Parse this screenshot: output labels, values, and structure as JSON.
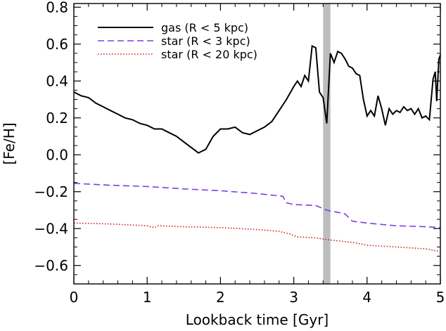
{
  "chart_data": {
    "type": "line",
    "xlabel": "Lookback time [Gyr]",
    "ylabel": "[Fe/H]",
    "xlim": [
      0,
      5
    ],
    "ylim": [
      -0.7,
      0.82
    ],
    "xticks": [
      0,
      1,
      2,
      3,
      4,
      5
    ],
    "xtick_labels": [
      "0",
      "1",
      "2",
      "3",
      "4",
      "5"
    ],
    "yticks": [
      -0.6,
      -0.4,
      -0.2,
      0.0,
      0.2,
      0.4,
      0.6,
      0.8
    ],
    "ytick_labels": [
      "−0.6",
      "−0.4",
      "−0.2",
      "0.0",
      "0.2",
      "0.4",
      "0.6",
      "0.8"
    ],
    "grid": false,
    "legend_position": "top-left",
    "highlight_band": {
      "x0": 3.4,
      "x1": 3.5,
      "color": "#bdbdbd"
    },
    "series": [
      {
        "name": "gas (R < 5 kpc)",
        "color": "#000000",
        "style": "solid",
        "points": [
          [
            0,
            0.34
          ],
          [
            0.1,
            0.32
          ],
          [
            0.2,
            0.31
          ],
          [
            0.3,
            0.28
          ],
          [
            0.4,
            0.26
          ],
          [
            0.5,
            0.24
          ],
          [
            0.6,
            0.22
          ],
          [
            0.7,
            0.2
          ],
          [
            0.8,
            0.19
          ],
          [
            0.9,
            0.17
          ],
          [
            1.0,
            0.16
          ],
          [
            1.1,
            0.14
          ],
          [
            1.2,
            0.14
          ],
          [
            1.3,
            0.12
          ],
          [
            1.4,
            0.1
          ],
          [
            1.5,
            0.07
          ],
          [
            1.6,
            0.04
          ],
          [
            1.7,
            0.01
          ],
          [
            1.8,
            0.03
          ],
          [
            1.9,
            0.1
          ],
          [
            2.0,
            0.14
          ],
          [
            2.1,
            0.14
          ],
          [
            2.2,
            0.15
          ],
          [
            2.3,
            0.12
          ],
          [
            2.4,
            0.11
          ],
          [
            2.5,
            0.13
          ],
          [
            2.6,
            0.15
          ],
          [
            2.7,
            0.18
          ],
          [
            2.8,
            0.24
          ],
          [
            2.9,
            0.3
          ],
          [
            3.0,
            0.37
          ],
          [
            3.05,
            0.4
          ],
          [
            3.1,
            0.37
          ],
          [
            3.15,
            0.43
          ],
          [
            3.2,
            0.4
          ],
          [
            3.25,
            0.59
          ],
          [
            3.3,
            0.58
          ],
          [
            3.35,
            0.34
          ],
          [
            3.4,
            0.31
          ],
          [
            3.45,
            0.17
          ],
          [
            3.5,
            0.55
          ],
          [
            3.55,
            0.5
          ],
          [
            3.6,
            0.56
          ],
          [
            3.65,
            0.55
          ],
          [
            3.7,
            0.52
          ],
          [
            3.75,
            0.48
          ],
          [
            3.8,
            0.47
          ],
          [
            3.85,
            0.44
          ],
          [
            3.9,
            0.43
          ],
          [
            3.95,
            0.3
          ],
          [
            4.0,
            0.21
          ],
          [
            4.05,
            0.24
          ],
          [
            4.1,
            0.21
          ],
          [
            4.15,
            0.32
          ],
          [
            4.2,
            0.25
          ],
          [
            4.25,
            0.16
          ],
          [
            4.3,
            0.25
          ],
          [
            4.35,
            0.22
          ],
          [
            4.4,
            0.24
          ],
          [
            4.45,
            0.23
          ],
          [
            4.5,
            0.26
          ],
          [
            4.55,
            0.24
          ],
          [
            4.6,
            0.25
          ],
          [
            4.65,
            0.22
          ],
          [
            4.7,
            0.25
          ],
          [
            4.75,
            0.2
          ],
          [
            4.8,
            0.21
          ],
          [
            4.85,
            0.19
          ],
          [
            4.9,
            0.41
          ],
          [
            4.93,
            0.45
          ],
          [
            4.95,
            0.29
          ],
          [
            4.98,
            0.52
          ],
          [
            5.0,
            0.54
          ]
        ]
      },
      {
        "name": "star (R < 3 kpc)",
        "color": "#7b3fe6",
        "style": "dashed",
        "points": [
          [
            0,
            -0.155
          ],
          [
            0.5,
            -0.165
          ],
          [
            1.0,
            -0.172
          ],
          [
            1.5,
            -0.185
          ],
          [
            2.0,
            -0.195
          ],
          [
            2.5,
            -0.21
          ],
          [
            2.85,
            -0.225
          ],
          [
            2.9,
            -0.26
          ],
          [
            3.0,
            -0.27
          ],
          [
            3.3,
            -0.275
          ],
          [
            3.45,
            -0.3
          ],
          [
            3.7,
            -0.32
          ],
          [
            3.8,
            -0.36
          ],
          [
            4.0,
            -0.37
          ],
          [
            4.4,
            -0.385
          ],
          [
            4.8,
            -0.39
          ],
          [
            5.0,
            -0.395
          ]
        ]
      },
      {
        "name": "star (R < 20 kpc)",
        "color": "#d11a1a",
        "style": "dotted",
        "points": [
          [
            0,
            -0.37
          ],
          [
            0.5,
            -0.375
          ],
          [
            1.0,
            -0.385
          ],
          [
            1.1,
            -0.395
          ],
          [
            1.15,
            -0.385
          ],
          [
            1.5,
            -0.39
          ],
          [
            2.0,
            -0.395
          ],
          [
            2.5,
            -0.405
          ],
          [
            2.8,
            -0.415
          ],
          [
            2.95,
            -0.43
          ],
          [
            3.05,
            -0.445
          ],
          [
            3.3,
            -0.45
          ],
          [
            3.45,
            -0.46
          ],
          [
            3.8,
            -0.475
          ],
          [
            4.0,
            -0.49
          ],
          [
            4.2,
            -0.495
          ],
          [
            4.4,
            -0.5
          ],
          [
            4.6,
            -0.505
          ],
          [
            4.8,
            -0.51
          ],
          [
            5.0,
            -0.525
          ]
        ]
      }
    ]
  }
}
